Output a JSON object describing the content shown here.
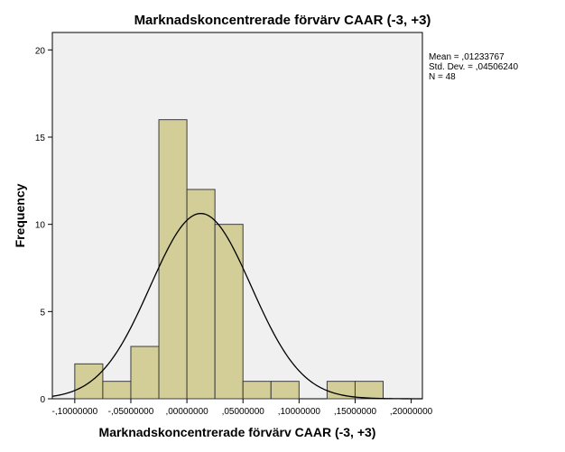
{
  "chart_data": {
    "type": "bar",
    "title": "Marknadskoncentrerade förvärv CAAR (-3, +3)",
    "xlabel": "Marknadskoncentrerade förvärv CAAR (-3, +3)",
    "ylabel": "Frequency",
    "bin_width": 0.025,
    "bins": [
      {
        "start": -0.1,
        "end": -0.075,
        "count": 2
      },
      {
        "start": -0.075,
        "end": -0.05,
        "count": 1
      },
      {
        "start": -0.05,
        "end": -0.025,
        "count": 3
      },
      {
        "start": -0.025,
        "end": 0.0,
        "count": 16
      },
      {
        "start": 0.0,
        "end": 0.025,
        "count": 12
      },
      {
        "start": 0.025,
        "end": 0.05,
        "count": 10
      },
      {
        "start": 0.05,
        "end": 0.075,
        "count": 1
      },
      {
        "start": 0.075,
        "end": 0.1,
        "count": 1
      },
      {
        "start": 0.1,
        "end": 0.125,
        "count": 0
      },
      {
        "start": 0.125,
        "end": 0.15,
        "count": 1
      },
      {
        "start": 0.15,
        "end": 0.175,
        "count": 1
      }
    ],
    "xlim": [
      -0.12,
      0.21
    ],
    "ylim": [
      0,
      21
    ],
    "xticks": [
      {
        "value": -0.1,
        "label": "-,10000000"
      },
      {
        "value": -0.05,
        "label": "-,05000000"
      },
      {
        "value": 0.0,
        "label": ",00000000"
      },
      {
        "value": 0.05,
        "label": ",05000000"
      },
      {
        "value": 0.1,
        "label": ",10000000"
      },
      {
        "value": 0.15,
        "label": ",15000000"
      },
      {
        "value": 0.2,
        "label": ",20000000"
      }
    ],
    "yticks": [
      {
        "value": 0,
        "label": "0"
      },
      {
        "value": 5,
        "label": "5"
      },
      {
        "value": 10,
        "label": "10"
      },
      {
        "value": 15,
        "label": "15"
      },
      {
        "value": 20,
        "label": "20"
      }
    ],
    "normal_curve": {
      "mean": 0.01233767,
      "std": 0.0450624,
      "n": 48
    },
    "stats": {
      "mean": "Mean = ,01233767",
      "std": "Std. Dev. = ,04506240",
      "n": "N = 48"
    },
    "grid": false,
    "legend_position": "top-right",
    "colors": {
      "plot_background": "#f0f0f0",
      "bar_fill": "#d3ce97",
      "bar_stroke": "#3c3c3c",
      "curve": "#000000",
      "axis": "#000000"
    }
  }
}
